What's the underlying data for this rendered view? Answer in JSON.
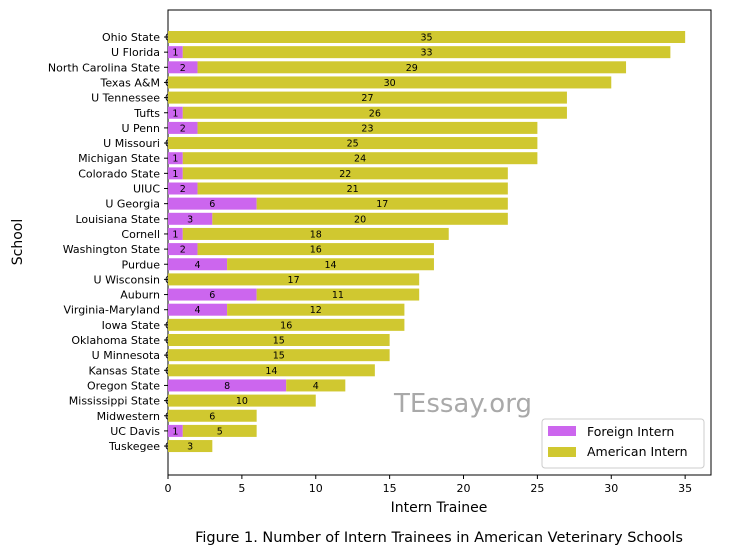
{
  "chart_data": {
    "type": "bar",
    "orientation": "horizontal",
    "stacked": true,
    "categories": [
      "Ohio State",
      "U Florida",
      "North Carolina State",
      "Texas A&M",
      "U Tennessee",
      "Tufts",
      "U Penn",
      "U Missouri",
      "Michigan State",
      "Colorado State",
      "UIUC",
      "U Georgia",
      "Louisiana State",
      "Cornell",
      "Washington State",
      "Purdue",
      "U Wisconsin",
      "Auburn",
      "Virginia-Maryland",
      "Iowa State",
      "Oklahoma State",
      "U Minnesota",
      "Kansas State",
      "Oregon State",
      "Mississippi State",
      "Midwestern",
      "UC Davis",
      "Tuskegee"
    ],
    "series": [
      {
        "name": "Foreign Intern",
        "color": "#cc66ee",
        "values": [
          0,
          1,
          2,
          0,
          0,
          1,
          2,
          0,
          1,
          1,
          2,
          6,
          3,
          1,
          2,
          4,
          0,
          6,
          4,
          0,
          0,
          0,
          0,
          8,
          0,
          0,
          1,
          0
        ]
      },
      {
        "name": "American Intern",
        "color": "#d0c830",
        "values": [
          35,
          33,
          29,
          30,
          27,
          26,
          23,
          25,
          24,
          22,
          21,
          17,
          20,
          18,
          16,
          14,
          17,
          11,
          12,
          16,
          15,
          15,
          14,
          4,
          10,
          6,
          5,
          3
        ]
      }
    ],
    "xlabel": "Intern Trainee",
    "ylabel": "School",
    "xlim": [
      0,
      36.75
    ],
    "xticks": [
      0,
      5,
      10,
      15,
      20,
      25,
      30,
      35
    ],
    "legend_position": "lower-right",
    "grid": false
  },
  "watermark": "TEssay.org",
  "caption": "Figure 1. Number of Intern Trainees in American Veterinary Schools"
}
